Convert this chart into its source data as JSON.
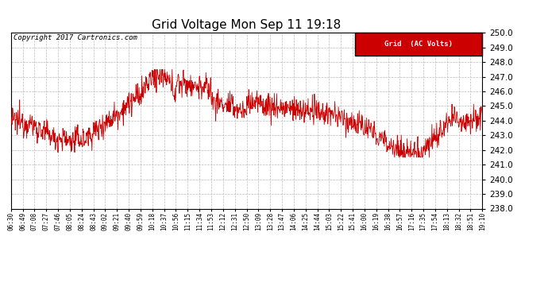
{
  "title": "Grid Voltage Mon Sep 11 19:18",
  "copyright": "Copyright 2017 Cartronics.com",
  "legend_label": "Grid  (AC Volts)",
  "line_color": "#cc0000",
  "legend_bg": "#cc0000",
  "legend_text_color": "#ffffff",
  "ylim": [
    238.0,
    250.0
  ],
  "yticks": [
    238.0,
    239.0,
    240.0,
    241.0,
    242.0,
    243.0,
    244.0,
    245.0,
    246.0,
    247.0,
    248.0,
    249.0,
    250.0
  ],
  "bg_color": "#ffffff",
  "plot_bg_color": "#ffffff",
  "grid_color": "#bbbbbb",
  "title_fontsize": 11,
  "copyright_fontsize": 6.5,
  "xtick_fontsize": 5.5,
  "ytick_fontsize": 7.5,
  "x_labels": [
    "06:30",
    "06:49",
    "07:08",
    "07:27",
    "07:46",
    "08:05",
    "08:24",
    "08:43",
    "09:02",
    "09:21",
    "09:40",
    "09:59",
    "10:18",
    "10:37",
    "10:56",
    "11:15",
    "11:34",
    "11:53",
    "12:12",
    "12:31",
    "12:50",
    "13:09",
    "13:28",
    "13:47",
    "14:06",
    "14:25",
    "14:44",
    "15:03",
    "15:22",
    "15:41",
    "16:00",
    "16:19",
    "16:38",
    "16:57",
    "17:16",
    "17:35",
    "17:54",
    "18:13",
    "18:32",
    "18:51",
    "19:10"
  ],
  "seed": 12345,
  "n_points": 1200
}
